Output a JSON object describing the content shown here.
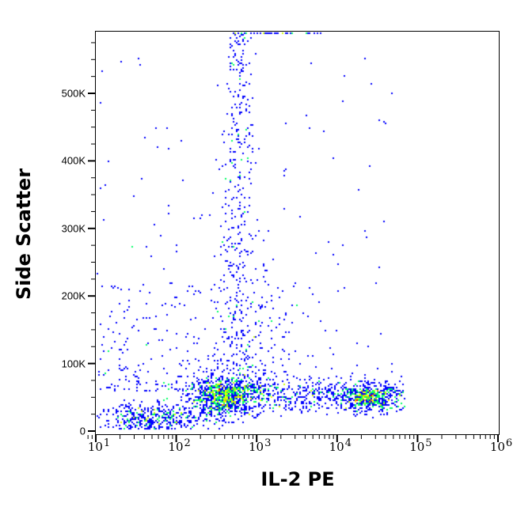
{
  "chart_data": {
    "type": "scatter",
    "subtype": "flow-cytometry-density-dot-plot",
    "title": "",
    "xlabel": "IL-2 PE",
    "ylabel": "Side Scatter",
    "x_scale": "log",
    "x_range": [
      8,
      1000000
    ],
    "xticks": [
      {
        "base": "10",
        "exp": "1",
        "value": 10
      },
      {
        "base": "10",
        "exp": "2",
        "value": 100
      },
      {
        "base": "10",
        "exp": "3",
        "value": 1000
      },
      {
        "base": "10",
        "exp": "4",
        "value": 10000
      },
      {
        "base": "10",
        "exp": "5",
        "value": 100000
      },
      {
        "base": "10",
        "exp": "6",
        "value": 1000000
      }
    ],
    "y_scale": "linear",
    "y_range": [
      -5000,
      590000
    ],
    "yticks": [
      {
        "label": "0",
        "value": 0
      },
      {
        "label": "100K",
        "value": 100000
      },
      {
        "label": "200K",
        "value": 200000
      },
      {
        "label": "300K",
        "value": 300000
      },
      {
        "label": "400K",
        "value": 400000
      },
      {
        "label": "500K",
        "value": 500000
      }
    ],
    "grid": false,
    "legend": null,
    "density_colormap": [
      "#0000ff",
      "#00ff66",
      "#ccff00",
      "#ffff00",
      "#ff9900",
      "#ff0000"
    ],
    "populations": [
      {
        "name": "main-blob",
        "x_center": 400,
        "y_center": 50000,
        "x_spread_log": 0.22,
        "y_spread": 14000,
        "count": 900,
        "peak_color": "#ff0000"
      },
      {
        "name": "vertical-streak",
        "x_center": 600,
        "y_min": 60000,
        "y_max": 590000,
        "x_spread_log": 0.07,
        "count": 520,
        "peak_color": "#00ff66"
      },
      {
        "name": "low-left",
        "x_center": 55,
        "y_center": 18000,
        "x_spread_log": 0.35,
        "y_spread": 12000,
        "count": 420,
        "peak_color": "#ffff00"
      },
      {
        "name": "right-band",
        "x_min": 1000,
        "x_max": 70000,
        "y_center": 52000,
        "y_spread": 12000,
        "count": 520,
        "peak_color": "#00ff66"
      },
      {
        "name": "right-hot-cluster",
        "x_center": 25000,
        "y_center": 50000,
        "x_spread_log": 0.15,
        "y_spread": 9000,
        "count": 380,
        "peak_color": "#ff9900"
      },
      {
        "name": "sparse-background",
        "x_min": 10,
        "x_max": 50000,
        "y_min": 60000,
        "y_max": 560000,
        "count": 180,
        "peak_color": "#0000ff"
      }
    ]
  }
}
